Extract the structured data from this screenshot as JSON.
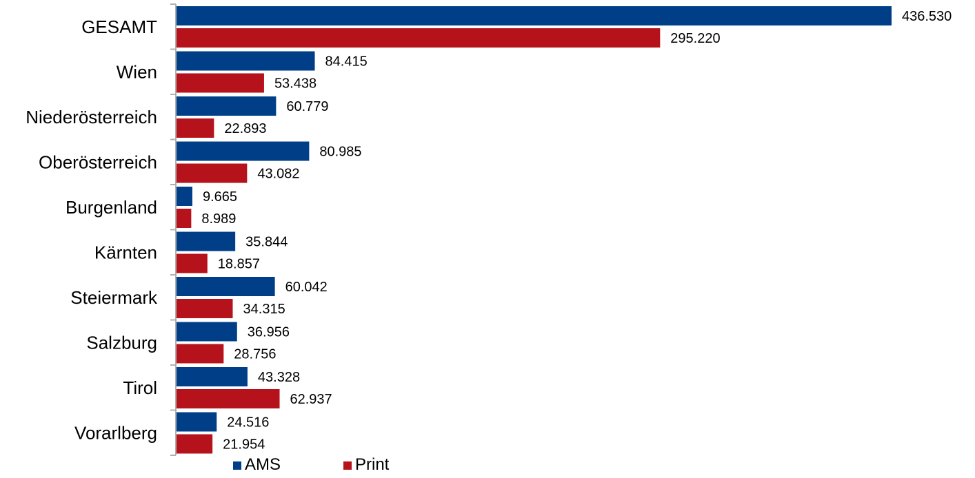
{
  "chart_data": {
    "type": "bar",
    "orientation": "horizontal",
    "categories": [
      "GESAMT",
      "Wien",
      "Niederösterreich",
      "Oberösterreich",
      "Burgenland",
      "Kärnten",
      "Steiermark",
      "Salzburg",
      "Tirol",
      "Vorarlberg"
    ],
    "series": [
      {
        "name": "AMS",
        "color": "#003f87",
        "values": [
          436530,
          84415,
          60779,
          80985,
          9665,
          35844,
          60042,
          36956,
          43328,
          24516
        ],
        "labels": [
          "436.530",
          "84.415",
          "60.779",
          "80.985",
          "9.665",
          "35.844",
          "60.042",
          "36.956",
          "43.328",
          "24.516"
        ]
      },
      {
        "name": "Print",
        "color": "#b5121b",
        "values": [
          295220,
          53438,
          22893,
          43082,
          8989,
          18857,
          34315,
          28756,
          62937,
          21954
        ],
        "labels": [
          "295.220",
          "53.438",
          "22.893",
          "43.082",
          "8.989",
          "18.857",
          "34.315",
          "28.756",
          "62.937",
          "21.954"
        ]
      }
    ],
    "xlim": [
      0,
      436530
    ],
    "grid": false,
    "legend_position": "bottom"
  }
}
